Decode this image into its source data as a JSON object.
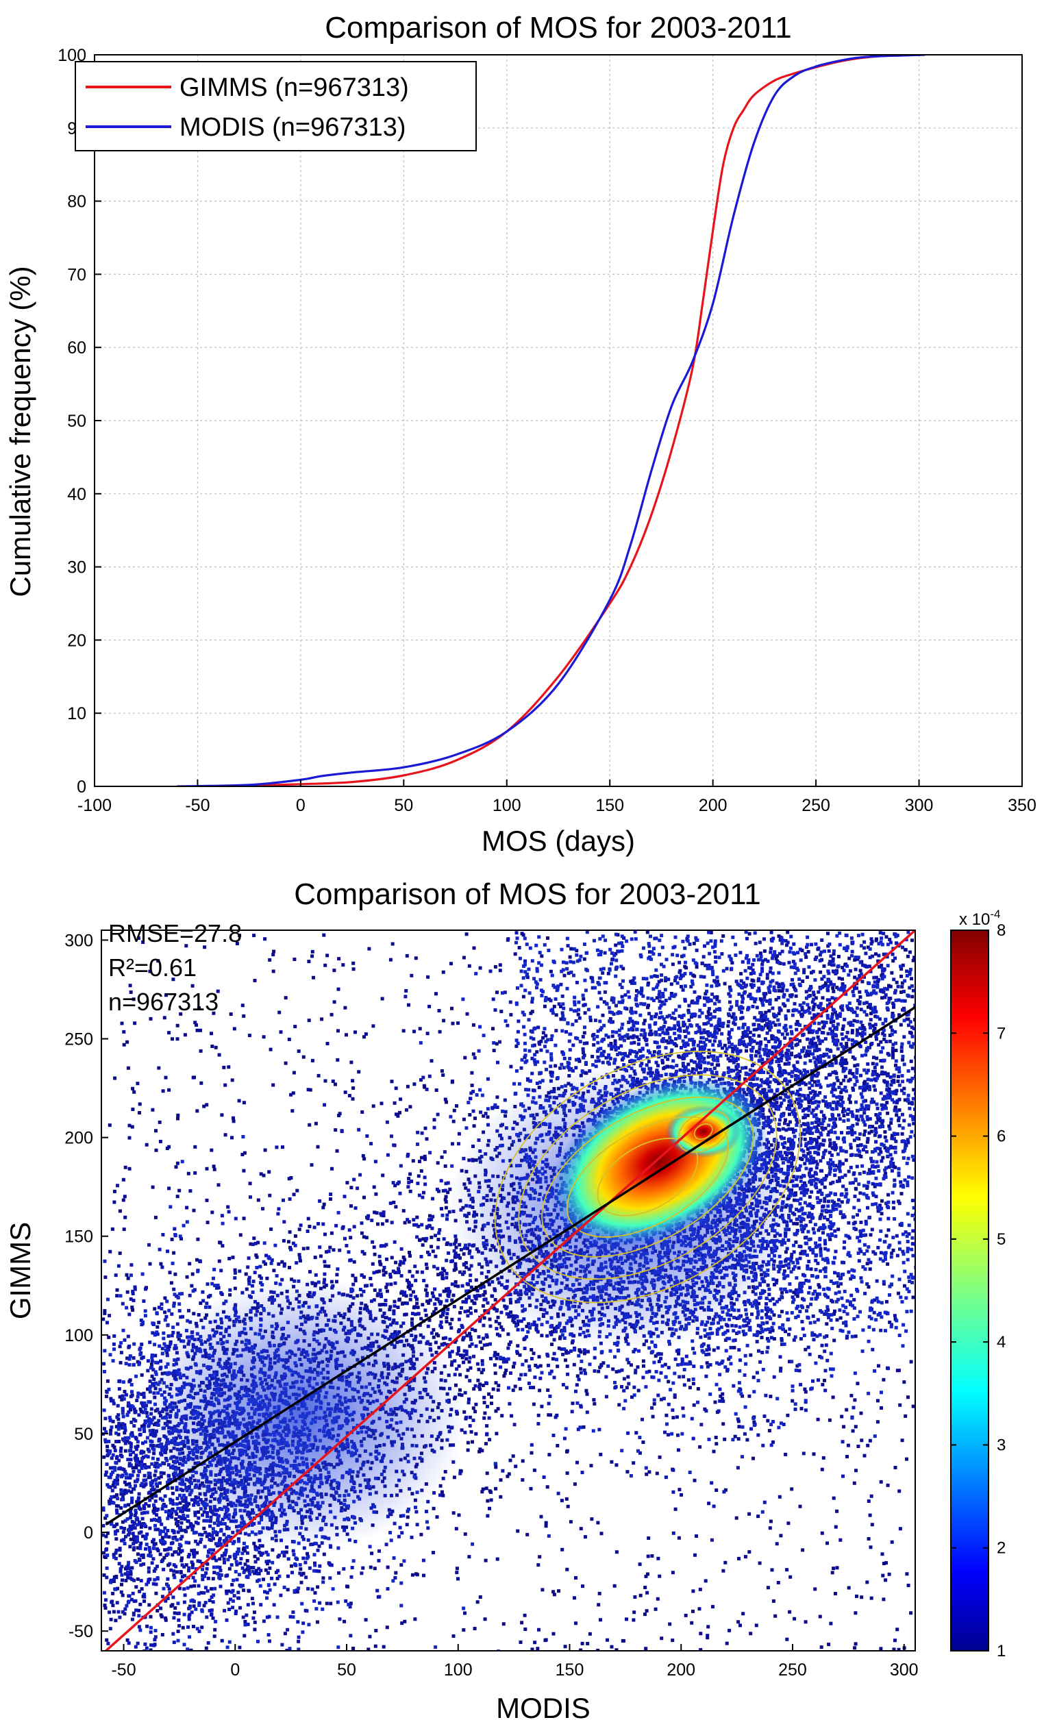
{
  "chart_data": [
    {
      "type": "line",
      "title": "Comparison of MOS for 2003-2011",
      "xlabel": "MOS (days)",
      "ylabel": "Cumulative frequency (%)",
      "xlim": [
        -100,
        350
      ],
      "ylim": [
        0,
        100
      ],
      "xticks": [
        "-100",
        "-50",
        "0",
        "50",
        "100",
        "150",
        "200",
        "250",
        "300",
        "350"
      ],
      "yticks": [
        "0",
        "10",
        "20",
        "30",
        "40",
        "50",
        "60",
        "70",
        "80",
        "90",
        "100"
      ],
      "grid": true,
      "legend_position": "top-left",
      "series": [
        {
          "name": "GIMMS (n=967313)",
          "color": "#e8141c",
          "x": [
            -50,
            -25,
            0,
            25,
            50,
            75,
            100,
            125,
            150,
            160,
            170,
            180,
            190,
            195,
            200,
            205,
            210,
            215,
            220,
            230,
            240,
            250,
            260,
            270,
            280,
            290,
            300
          ],
          "y": [
            0,
            0.1,
            0.3,
            0.6,
            1.5,
            3.5,
            7.5,
            15,
            25,
            30,
            37,
            46,
            57,
            66,
            76,
            85,
            90,
            92.5,
            94.5,
            96.5,
            97.5,
            98.3,
            99,
            99.5,
            99.8,
            99.9,
            100
          ]
        },
        {
          "name": "MODIS (n=967313)",
          "color": "#1a1ad6",
          "x": [
            -60,
            -25,
            0,
            10,
            25,
            50,
            75,
            100,
            125,
            150,
            160,
            170,
            180,
            190,
            200,
            210,
            220,
            230,
            240,
            250,
            260,
            270,
            280,
            290,
            303
          ],
          "y": [
            0,
            0.2,
            0.9,
            1.4,
            1.9,
            2.6,
            4.3,
            7.5,
            14,
            25.5,
            33,
            43,
            52,
            58,
            66,
            78,
            88,
            94.5,
            97.2,
            98.4,
            99.1,
            99.6,
            99.8,
            99.9,
            100
          ]
        }
      ]
    },
    {
      "type": "scatter",
      "title": "Comparison of MOS for 2003-2011",
      "xlabel": "MODIS",
      "ylabel": "GIMMS",
      "xlim": [
        -60,
        305
      ],
      "ylim": [
        -60,
        305
      ],
      "xticks": [
        "-50",
        "0",
        "50",
        "100",
        "150",
        "200",
        "250",
        "300"
      ],
      "yticks": [
        "-50",
        "0",
        "50",
        "100",
        "150",
        "200",
        "250",
        "300"
      ],
      "grid": false,
      "annotations": [
        "RMSE=27.8",
        "R²=0.61",
        "n=967313"
      ],
      "density_center": [
        210,
        203
      ],
      "reference_lines": [
        {
          "name": "1:1 line",
          "color": "#e8141c",
          "x": [
            -58,
            305
          ],
          "y": [
            -60,
            305
          ]
        },
        {
          "name": "fit line",
          "color": "#000000",
          "x": [
            -58,
            305
          ],
          "y": [
            4,
            266
          ]
        }
      ],
      "colorbar": {
        "range": [
          1,
          8
        ],
        "scale_label": "x 10",
        "scale_exponent": "-4",
        "ticks": [
          "1",
          "2",
          "3",
          "4",
          "5",
          "6",
          "7",
          "8"
        ]
      }
    }
  ]
}
